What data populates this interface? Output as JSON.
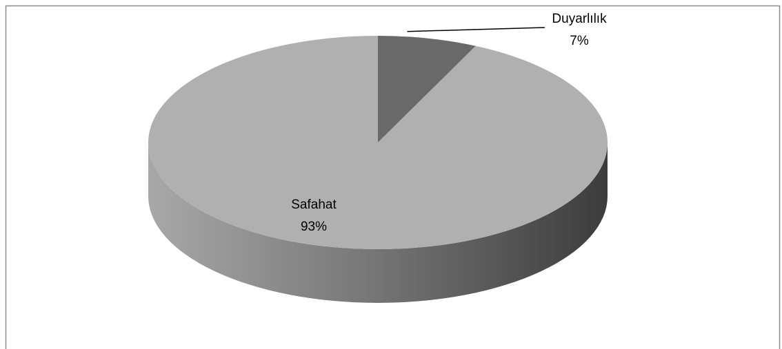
{
  "chart_data": {
    "type": "pie3d",
    "categories": [
      "Duyarlılık",
      "Safahat"
    ],
    "values": [
      7,
      93
    ],
    "value_labels": [
      "7%",
      "93%"
    ],
    "colors": [
      "#696969",
      "#b0b0b0"
    ]
  }
}
